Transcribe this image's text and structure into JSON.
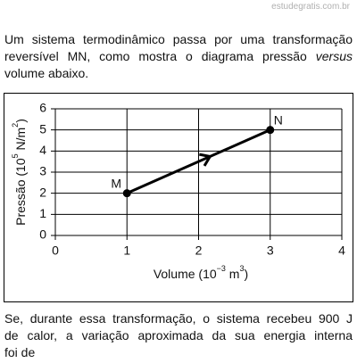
{
  "watermark": "estudegratis.com.br",
  "intro": {
    "lines": [
      [
        "Um sistema termodinâmico passa por uma transformação"
      ],
      [
        "reversível MN, como mostra o diagrama pressão ",
        "versus"
      ],
      [
        "volume abaixo."
      ]
    ]
  },
  "chart_data": {
    "type": "line",
    "ylabel": [
      "Pressão (10",
      "5",
      " N/m",
      "2",
      ")"
    ],
    "xlabel": [
      "Volume (10",
      "−3",
      " m",
      "3",
      ")"
    ],
    "x": [
      1,
      3
    ],
    "series": [
      {
        "values": [
          2,
          5
        ],
        "color": "#000000",
        "point_labels": [
          "M",
          "N"
        ]
      }
    ],
    "xlim": [
      0,
      4
    ],
    "xticks": [
      0,
      1,
      2,
      3,
      4
    ],
    "ylim": [
      0,
      6
    ],
    "yticks": [
      0,
      1,
      2,
      3,
      4,
      5,
      6
    ],
    "grid": true
  },
  "question": {
    "lines": [
      [
        "Se, durante essa transformação, o sistema recebeu 900 J"
      ],
      [
        "de calor, a variação aproximada da sua energia interna"
      ],
      [
        "foi de"
      ]
    ]
  }
}
